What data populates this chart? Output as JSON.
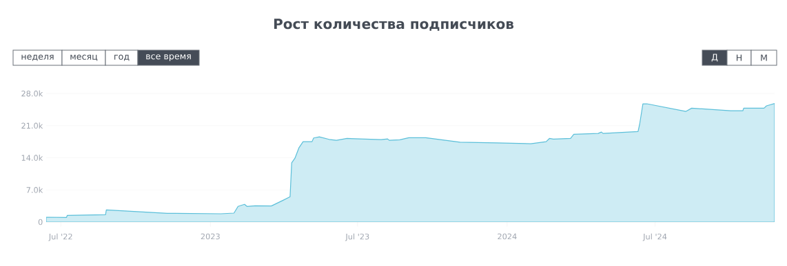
{
  "chart_data": {
    "type": "area",
    "title": "Рост количества подписчиков",
    "annotations": [
      "неделя",
      "месяц",
      "год",
      "все время",
      "Д",
      "Н",
      "М"
    ],
    "x": [
      "2022-06-13",
      "2022-07-08",
      "2022-07-09",
      "2022-08-25",
      "2022-08-26",
      "2022-11-09",
      "2023-01-14",
      "2023-01-30",
      "2023-02-04",
      "2023-02-12",
      "2023-02-15",
      "2023-02-25",
      "2023-03-17",
      "2023-03-31",
      "2023-04-09",
      "2023-04-11",
      "2023-04-15",
      "2023-04-20",
      "2023-04-25",
      "2023-05-06",
      "2023-05-08",
      "2023-05-15",
      "2023-05-27",
      "2023-06-05",
      "2023-06-18",
      "2023-07-30",
      "2023-08-07",
      "2023-08-09",
      "2023-08-22",
      "2023-09-02",
      "2023-09-23",
      "2023-11-04",
      "2023-12-19",
      "2024-01-30",
      "2024-02-18",
      "2024-02-22",
      "2024-02-27",
      "2024-03-19",
      "2024-03-23",
      "2024-04-22",
      "2024-04-26",
      "2024-04-28",
      "2024-06-10",
      "2024-06-12",
      "2024-06-16",
      "2024-06-21",
      "2024-08-08",
      "2024-08-15",
      "2024-10-02",
      "2024-10-17",
      "2024-10-18",
      "2024-11-12",
      "2024-11-15",
      "2024-11-25"
    ],
    "values": [
      1050,
      1000,
      1450,
      1600,
      2650,
      1900,
      1800,
      1950,
      3400,
      3850,
      3400,
      3550,
      3500,
      4700,
      5500,
      12900,
      13900,
      16200,
      17500,
      17500,
      18300,
      18550,
      18000,
      17800,
      18200,
      17950,
      18100,
      17800,
      17900,
      18350,
      18350,
      17400,
      17250,
      17050,
      17500,
      18200,
      18050,
      18200,
      19100,
      19300,
      19600,
      19300,
      19700,
      21300,
      25750,
      25750,
      24100,
      24800,
      24250,
      24250,
      24800,
      24800,
      25300,
      25800
    ],
    "color": "#5bbfd9",
    "xlim": [
      "2022-06-13",
      "2024-11-25"
    ],
    "xticks": [
      {
        "value": "2022-07-01",
        "label": "Jul '22"
      },
      {
        "value": "2023-01-01",
        "label": "2023"
      },
      {
        "value": "2023-07-01",
        "label": "Jul '23"
      },
      {
        "value": "2024-01-01",
        "label": "2024"
      },
      {
        "value": "2024-07-01",
        "label": "Jul '24"
      }
    ],
    "ylim": [
      0,
      28000
    ],
    "yticks": [
      0,
      {
        "value": 7000,
        "label": "7.0k"
      },
      {
        "value": 14000,
        "label": "14.0k"
      },
      {
        "value": 21000,
        "label": "21.0k"
      },
      {
        "value": 28000,
        "label": "28.0k"
      }
    ],
    "grid": "y"
  }
}
